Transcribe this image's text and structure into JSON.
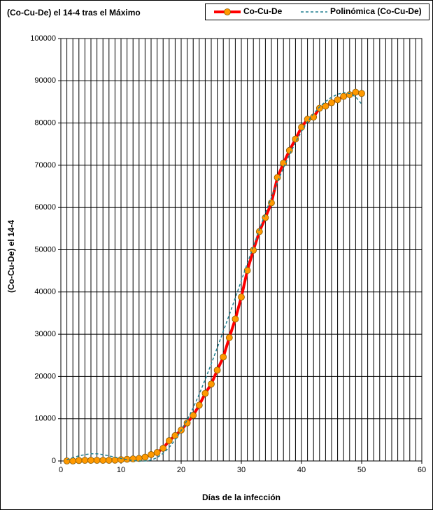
{
  "chart_data": {
    "type": "line",
    "title": "(Co-Cu-De)  el 14-4  tras el Máximo",
    "x_label": "Días de la infección",
    "y_label": "(Co-Cu-De)  el 14-4",
    "x": [
      1,
      2,
      3,
      4,
      5,
      6,
      7,
      8,
      9,
      10,
      11,
      12,
      13,
      14,
      15,
      16,
      17,
      18,
      19,
      20,
      21,
      22,
      23,
      24,
      25,
      26,
      27,
      28,
      29,
      30,
      31,
      32,
      33,
      34,
      35,
      36,
      37,
      38,
      39,
      40,
      41,
      42,
      43,
      44,
      45,
      46,
      47,
      48,
      49,
      50
    ],
    "series": [
      {
        "name": "Co-Cu-De",
        "color": "#ff0000",
        "marker_color": "#ff9900",
        "style": "solid",
        "values": [
          0,
          0,
          100,
          150,
          150,
          150,
          150,
          150,
          200,
          300,
          400,
          500,
          600,
          900,
          1500,
          2000,
          3000,
          4800,
          6000,
          7300,
          9000,
          10800,
          13200,
          16000,
          18200,
          21500,
          24600,
          29200,
          33600,
          38800,
          45100,
          49900,
          54300,
          57600,
          61100,
          67100,
          70500,
          73500,
          76200,
          79000,
          80900,
          81400,
          83500,
          84000,
          84800,
          85500,
          86300,
          86700,
          87300,
          87000
        ]
      },
      {
        "name": "Polinómica (Co-Cu-De)",
        "color": "#1f7f8f",
        "style": "dashed",
        "values": [
          300,
          800,
          1200,
          1500,
          1700,
          1700,
          1500,
          1200,
          900,
          600,
          300,
          100,
          0,
          0,
          200,
          800,
          1800,
          3200,
          5000,
          7200,
          9700,
          12600,
          15800,
          19300,
          23000,
          26800,
          30700,
          34600,
          38600,
          42700,
          46800,
          50800,
          54800,
          58700,
          62400,
          66000,
          69400,
          72500,
          75400,
          78000,
          80300,
          82200,
          83800,
          85100,
          86100,
          86800,
          87200,
          87000,
          86200,
          84500
        ]
      }
    ],
    "xlim": [
      0,
      60
    ],
    "xticks": [
      0,
      10,
      20,
      30,
      40,
      50,
      60
    ],
    "ylim": [
      0,
      100000
    ],
    "yticks": [
      0,
      10000,
      20000,
      30000,
      40000,
      50000,
      60000,
      70000,
      80000,
      90000,
      100000
    ],
    "grid": true,
    "legend": "top-right"
  }
}
